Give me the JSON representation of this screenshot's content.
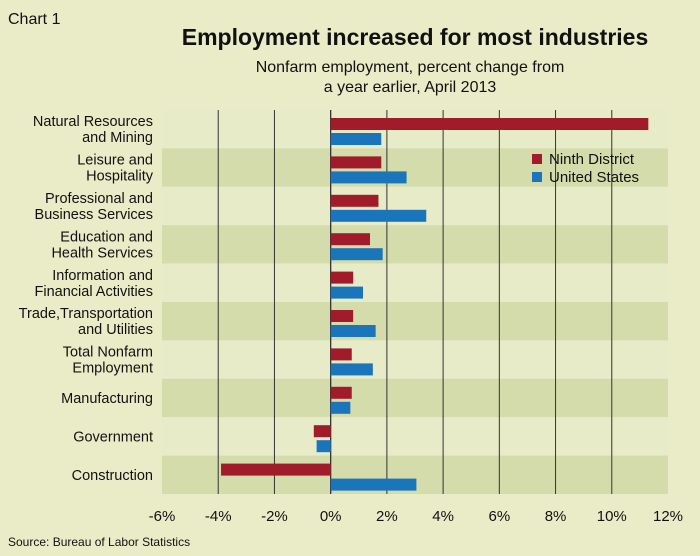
{
  "chart_data": {
    "type": "bar",
    "orientation": "horizontal",
    "chart_label": "Chart 1",
    "title": "Employment increased for most industries",
    "subtitle_lines": [
      "Nonfarm employment, percent change from",
      "a year earlier, April 2013"
    ],
    "source": "Source: Bureau of Labor Statistics",
    "categories": [
      [
        "Natural Resources",
        "and Mining"
      ],
      [
        "Leisure and",
        "Hospitality"
      ],
      [
        "Professional and",
        "Business Services"
      ],
      [
        "Education and",
        "Health Services"
      ],
      [
        "Information and",
        "Financial Activities"
      ],
      [
        "Trade,Transportation",
        "and Utilities"
      ],
      [
        "Total Nonfarm",
        "Employment"
      ],
      [
        "Manufacturing"
      ],
      [
        "Government"
      ],
      [
        "Construction"
      ]
    ],
    "series": [
      {
        "name": "Ninth District",
        "color": "#a11c2b",
        "values": [
          11.3,
          1.8,
          1.7,
          1.4,
          0.8,
          0.8,
          0.75,
          0.75,
          -0.6,
          -3.9
        ]
      },
      {
        "name": "United States",
        "color": "#1a75bb",
        "values": [
          1.8,
          2.7,
          3.4,
          1.85,
          1.15,
          1.6,
          1.5,
          0.7,
          -0.5,
          3.05
        ]
      }
    ],
    "xlim": [
      -6,
      12
    ],
    "xticks": [
      -6,
      -4,
      -2,
      0,
      2,
      4,
      6,
      8,
      10,
      12
    ],
    "tick_suffix": "%",
    "legend_position": "top-right",
    "band_colors": [
      "#e8ebc8",
      "#d4dcac"
    ],
    "grid": true
  }
}
